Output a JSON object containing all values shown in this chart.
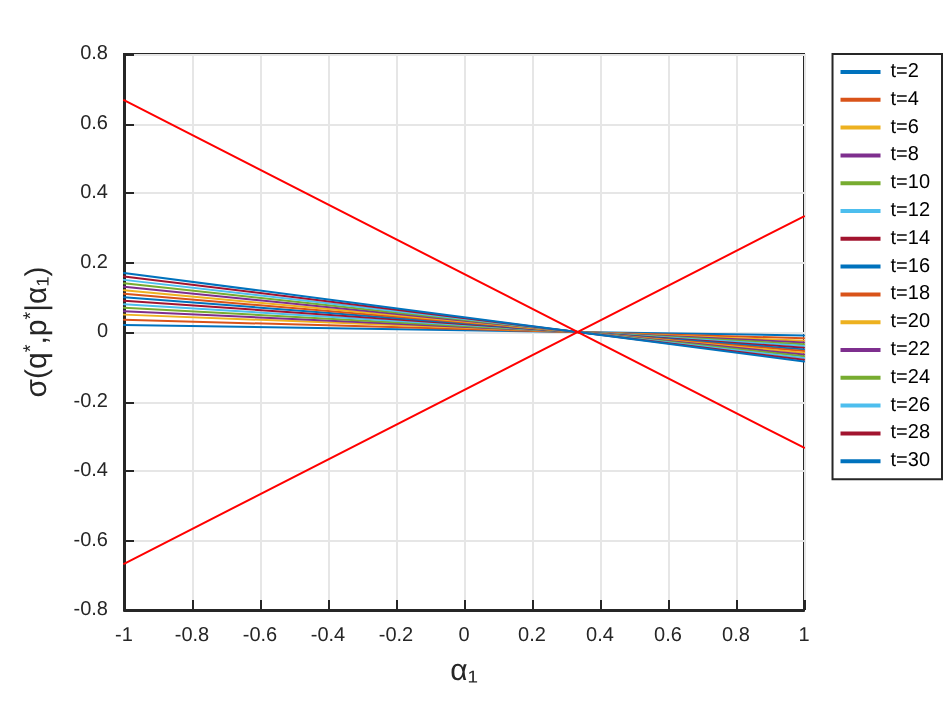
{
  "chart_data": {
    "type": "line",
    "xlabel": "α₁",
    "ylabel": "σ(q$^{*}$,p$^{*}$|α₁)",
    "xlim": [
      -1,
      1
    ],
    "ylim": [
      -0.8,
      0.8
    ],
    "xticks": [
      -1,
      -0.8,
      -0.6,
      -0.4,
      -0.2,
      0,
      0.2,
      0.4,
      0.6,
      0.8,
      1
    ],
    "yticks": [
      -0.8,
      -0.6,
      -0.4,
      -0.2,
      0,
      0.2,
      0.4,
      0.6,
      0.8
    ],
    "grid": true,
    "legend": "top right",
    "marker": "none",
    "line_style": "solid",
    "x": [
      -1,
      1
    ],
    "series": [
      {
        "name": "t=2",
        "color": "#0072bd",
        "values": [
          0.02,
          -0.01
        ]
      },
      {
        "name": "t=4",
        "color": "#d95319",
        "values": [
          0.035,
          -0.018
        ]
      },
      {
        "name": "t=6",
        "color": "#edb120",
        "values": [
          0.05,
          -0.025
        ]
      },
      {
        "name": "t=8",
        "color": "#7e2f8e",
        "values": [
          0.06,
          -0.03
        ]
      },
      {
        "name": "t=10",
        "color": "#77ac30",
        "values": [
          0.07,
          -0.035
        ]
      },
      {
        "name": "t=12",
        "color": "#4dbeee",
        "values": [
          0.08,
          -0.04
        ]
      },
      {
        "name": "t=14",
        "color": "#a2142f",
        "values": [
          0.09,
          -0.045
        ]
      },
      {
        "name": "t=16",
        "color": "#0072bd",
        "values": [
          0.1,
          -0.05
        ]
      },
      {
        "name": "t=18",
        "color": "#d95319",
        "values": [
          0.11,
          -0.055
        ]
      },
      {
        "name": "t=20",
        "color": "#edb120",
        "values": [
          0.12,
          -0.06
        ]
      },
      {
        "name": "t=22",
        "color": "#7e2f8e",
        "values": [
          0.13,
          -0.065
        ]
      },
      {
        "name": "t=24",
        "color": "#77ac30",
        "values": [
          0.14,
          -0.07
        ]
      },
      {
        "name": "t=26",
        "color": "#4dbeee",
        "values": [
          0.15,
          -0.075
        ]
      },
      {
        "name": "t=28",
        "color": "#a2142f",
        "values": [
          0.16,
          -0.08
        ]
      },
      {
        "name": "t=30",
        "color": "#0072bd",
        "values": [
          0.17,
          -0.085
        ]
      },
      {
        "color": "#ff0000",
        "values": [
          0.667,
          -0.333
        ]
      },
      {
        "color": "#ff0000",
        "values": [
          -0.667,
          0.333
        ]
      }
    ]
  }
}
